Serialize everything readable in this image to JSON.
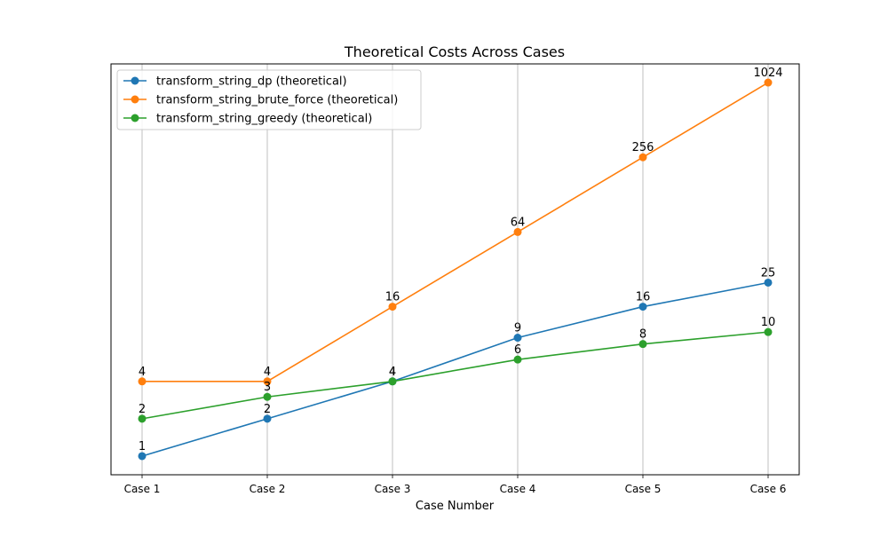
{
  "chart_data": {
    "type": "line",
    "title": "Theoretical Costs Across Cases",
    "xlabel": "Case Number",
    "ylabel": "",
    "y_scale": "log",
    "y_ticks_shown": false,
    "grid": "x-only",
    "legend_position": "top-left",
    "categories": [
      "Case 1",
      "Case 2",
      "Case 3",
      "Case 4",
      "Case 5",
      "Case 6"
    ],
    "series": [
      {
        "name": "transform_string_dp (theoretical)",
        "color": "#1f77b4",
        "values": [
          1,
          2,
          4,
          9,
          16,
          25
        ],
        "labels": [
          "1",
          "2",
          "4",
          "9",
          "16",
          "25"
        ]
      },
      {
        "name": "transform_string_brute_force (theoretical)",
        "color": "#ff7f0e",
        "values": [
          4,
          4,
          16,
          64,
          256,
          1024
        ],
        "labels": [
          "4",
          "4",
          "16",
          "64",
          "256",
          "1024"
        ]
      },
      {
        "name": "transform_string_greedy (theoretical)",
        "color": "#2ca02c",
        "values": [
          2,
          3,
          4,
          6,
          8,
          10
        ],
        "labels": [
          "2",
          "3",
          "4",
          "6",
          "8",
          "10"
        ]
      }
    ]
  }
}
